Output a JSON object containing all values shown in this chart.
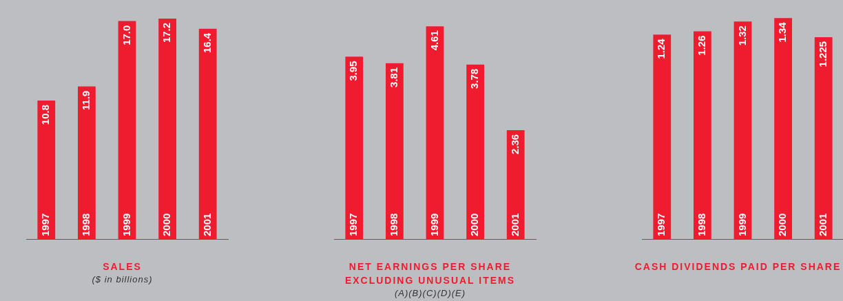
{
  "chart_data": [
    {
      "type": "bar",
      "title": "SALES",
      "subtitle": "($ in billions)",
      "categories": [
        "1997",
        "1998",
        "1999",
        "2000",
        "2001"
      ],
      "values": [
        10.8,
        11.9,
        17,
        17.2,
        16.4
      ],
      "value_labels": [
        "10.8",
        "11.9",
        "17.0",
        "17.2",
        "16.4"
      ],
      "color": "#ee1c2e",
      "tick_labels": "x"
    },
    {
      "type": "bar",
      "title": "NET EARNINGS PER SHARE EXCLUDING UNUSUAL ITEMS",
      "subtitle": "(A)(B)(C)(D)(E)",
      "categories": [
        "1997",
        "1998",
        "1999",
        "2000",
        "2001"
      ],
      "values": [
        3.95,
        3.81,
        4.61,
        3.78,
        2.36
      ],
      "value_labels": [
        "3.95",
        "3.81",
        "4.61",
        "3.78",
        "2.36"
      ],
      "color": "#ee1c2e",
      "tick_labels": "x"
    },
    {
      "type": "bar",
      "title": "CASH DIVIDENDS PAID PER SHARE",
      "categories": [
        "1997",
        "1998",
        "1999",
        "2000",
        "2001"
      ],
      "values": [
        1.24,
        1.26,
        1.32,
        1.34,
        1.225
      ],
      "value_labels": [
        "1.24",
        "1.26",
        "1.32",
        "1.34",
        "1.225"
      ],
      "color": "#ee1c2e",
      "tick_labels": "x"
    }
  ]
}
